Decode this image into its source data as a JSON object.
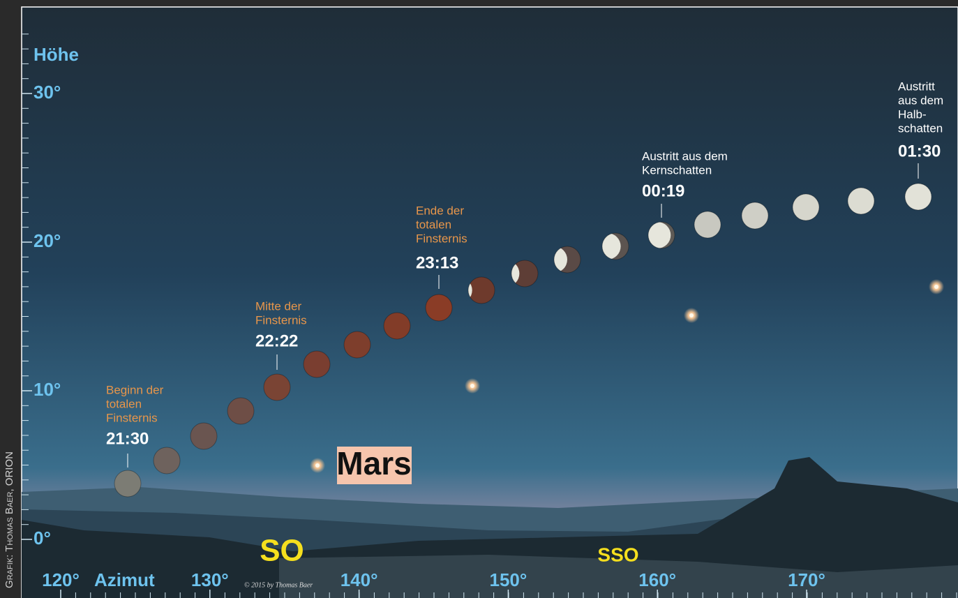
{
  "credit": "Grafik: Thomas Baer, ORION",
  "altitude": {
    "label": "Höhe",
    "ticks": [
      "0°",
      "10°",
      "20°",
      "30°"
    ]
  },
  "azimuth": {
    "label": "Azimut",
    "ticks": [
      "120°",
      "130°",
      "140°",
      "150°",
      "160°",
      "170°"
    ]
  },
  "events": [
    {
      "lines": [
        "Beginn der",
        "totalen",
        "Finsternis"
      ],
      "time": "21:30"
    },
    {
      "lines": [
        "Mitte der",
        "Finsternis"
      ],
      "time": "22:22"
    },
    {
      "lines": [
        "Ende der",
        "totalen",
        "Finsternis"
      ],
      "time": "23:13"
    },
    {
      "lines": [
        "Austritt aus dem",
        "Kernschatten"
      ],
      "time": "00:19"
    },
    {
      "lines": [
        "Austritt",
        "aus dem",
        "Halb-",
        "schatten"
      ],
      "time": "01:30"
    }
  ],
  "planet": "Mars",
  "directions": [
    "SO",
    "SSO"
  ],
  "copyright": "© 2015 by Thomas Baer"
}
